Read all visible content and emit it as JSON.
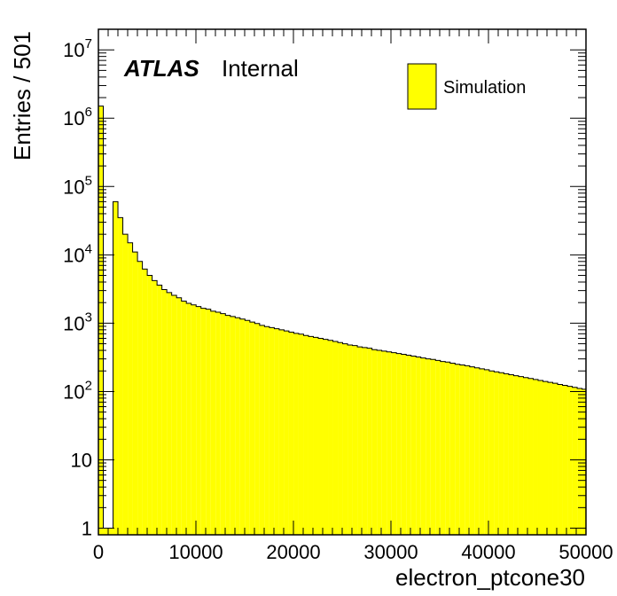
{
  "chart_data": {
    "type": "bar",
    "subtype": "histogram",
    "xlabel": "electron_ptcone30",
    "ylabel": "Entries / 501",
    "xlim": [
      0,
      50000
    ],
    "ylim": [
      0.8,
      20000000
    ],
    "yscale": "log",
    "bin_width": 501,
    "fill_color": "#ffff00",
    "line_color": "#000000",
    "x_ticks": [
      "0",
      "10000",
      "20000",
      "30000",
      "40000",
      "50000"
    ],
    "y_ticks": [
      {
        "value": 1,
        "base": "1",
        "exp": ""
      },
      {
        "value": 10,
        "base": "10",
        "exp": ""
      },
      {
        "value": 100,
        "base": "10",
        "exp": "2"
      },
      {
        "value": 1000,
        "base": "10",
        "exp": "3"
      },
      {
        "value": 10000,
        "base": "10",
        "exp": "4"
      },
      {
        "value": 100000,
        "base": "10",
        "exp": "5"
      },
      {
        "value": 1000000,
        "base": "10",
        "exp": "6"
      },
      {
        "value": 10000000,
        "base": "10",
        "exp": "7"
      }
    ],
    "experiment_label": "ATLAS",
    "status_label": "Internal",
    "legend": {
      "placement": "top-right",
      "entries": [
        {
          "name": "Simulation",
          "color": "#ffff00"
        }
      ]
    },
    "bins": [
      {
        "x": 0,
        "y": 1500000
      },
      {
        "x": 501,
        "y": 1
      },
      {
        "x": 1002,
        "y": 1
      },
      {
        "x": 1503,
        "y": 60000
      },
      {
        "x": 2004,
        "y": 35000
      },
      {
        "x": 2505,
        "y": 20000
      },
      {
        "x": 3006,
        "y": 15000
      },
      {
        "x": 3507,
        "y": 11000
      },
      {
        "x": 4008,
        "y": 8000
      },
      {
        "x": 4509,
        "y": 6200
      },
      {
        "x": 5010,
        "y": 5000
      },
      {
        "x": 5511,
        "y": 4200
      },
      {
        "x": 6012,
        "y": 3600
      },
      {
        "x": 6513,
        "y": 3100
      },
      {
        "x": 7014,
        "y": 2800
      },
      {
        "x": 7515,
        "y": 2550
      },
      {
        "x": 8016,
        "y": 2350
      },
      {
        "x": 8517,
        "y": 2100
      },
      {
        "x": 9018,
        "y": 1950
      },
      {
        "x": 9519,
        "y": 1850
      },
      {
        "x": 10020,
        "y": 1750
      },
      {
        "x": 10521,
        "y": 1650
      },
      {
        "x": 11022,
        "y": 1600
      },
      {
        "x": 11523,
        "y": 1500
      },
      {
        "x": 12024,
        "y": 1450
      },
      {
        "x": 12525,
        "y": 1380
      },
      {
        "x": 13026,
        "y": 1300
      },
      {
        "x": 13527,
        "y": 1250
      },
      {
        "x": 14028,
        "y": 1200
      },
      {
        "x": 14529,
        "y": 1150
      },
      {
        "x": 15030,
        "y": 1100
      },
      {
        "x": 15531,
        "y": 1040
      },
      {
        "x": 16032,
        "y": 990
      },
      {
        "x": 16533,
        "y": 930
      },
      {
        "x": 17034,
        "y": 890
      },
      {
        "x": 17535,
        "y": 860
      },
      {
        "x": 18036,
        "y": 830
      },
      {
        "x": 18537,
        "y": 800
      },
      {
        "x": 19038,
        "y": 770
      },
      {
        "x": 19539,
        "y": 740
      },
      {
        "x": 20040,
        "y": 710
      },
      {
        "x": 20541,
        "y": 690
      },
      {
        "x": 21042,
        "y": 660
      },
      {
        "x": 21543,
        "y": 640
      },
      {
        "x": 22044,
        "y": 620
      },
      {
        "x": 22545,
        "y": 600
      },
      {
        "x": 23046,
        "y": 580
      },
      {
        "x": 23547,
        "y": 560
      },
      {
        "x": 24048,
        "y": 540
      },
      {
        "x": 24549,
        "y": 520
      },
      {
        "x": 25050,
        "y": 500
      },
      {
        "x": 25551,
        "y": 480
      },
      {
        "x": 26052,
        "y": 470
      },
      {
        "x": 26553,
        "y": 450
      },
      {
        "x": 27054,
        "y": 440
      },
      {
        "x": 27555,
        "y": 430
      },
      {
        "x": 28056,
        "y": 410
      },
      {
        "x": 28557,
        "y": 400
      },
      {
        "x": 29058,
        "y": 390
      },
      {
        "x": 29559,
        "y": 380
      },
      {
        "x": 30060,
        "y": 370
      },
      {
        "x": 30561,
        "y": 360
      },
      {
        "x": 31062,
        "y": 350
      },
      {
        "x": 31563,
        "y": 340
      },
      {
        "x": 32064,
        "y": 330
      },
      {
        "x": 32565,
        "y": 320
      },
      {
        "x": 33066,
        "y": 310
      },
      {
        "x": 33567,
        "y": 300
      },
      {
        "x": 34068,
        "y": 295
      },
      {
        "x": 34569,
        "y": 285
      },
      {
        "x": 35070,
        "y": 275
      },
      {
        "x": 35571,
        "y": 270
      },
      {
        "x": 36072,
        "y": 260
      },
      {
        "x": 36573,
        "y": 250
      },
      {
        "x": 37074,
        "y": 245
      },
      {
        "x": 37575,
        "y": 238
      },
      {
        "x": 38076,
        "y": 230
      },
      {
        "x": 38577,
        "y": 222
      },
      {
        "x": 39078,
        "y": 215
      },
      {
        "x": 39579,
        "y": 208
      },
      {
        "x": 40080,
        "y": 200
      },
      {
        "x": 40581,
        "y": 194
      },
      {
        "x": 41082,
        "y": 188
      },
      {
        "x": 41583,
        "y": 182
      },
      {
        "x": 42084,
        "y": 176
      },
      {
        "x": 42585,
        "y": 170
      },
      {
        "x": 43086,
        "y": 165
      },
      {
        "x": 43587,
        "y": 160
      },
      {
        "x": 44088,
        "y": 155
      },
      {
        "x": 44589,
        "y": 150
      },
      {
        "x": 45090,
        "y": 145
      },
      {
        "x": 45591,
        "y": 140
      },
      {
        "x": 46092,
        "y": 136
      },
      {
        "x": 46593,
        "y": 132
      },
      {
        "x": 47094,
        "y": 127
      },
      {
        "x": 47595,
        "y": 123
      },
      {
        "x": 48096,
        "y": 119
      },
      {
        "x": 48597,
        "y": 115
      },
      {
        "x": 49098,
        "y": 111
      },
      {
        "x": 49599,
        "y": 108
      }
    ]
  }
}
